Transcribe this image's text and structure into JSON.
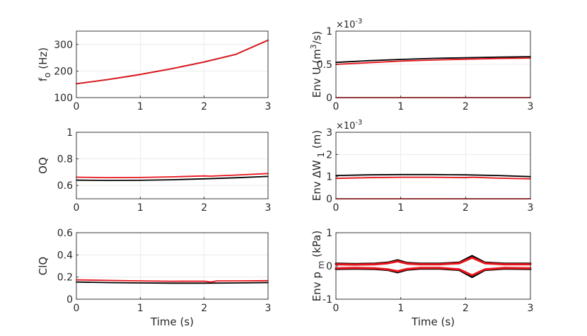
{
  "colors": {
    "black_series": "#000000",
    "red_series": "#e8141b",
    "axis": "#262626",
    "grid": "#e6e6e6"
  },
  "charts": [
    {
      "id": "fo",
      "type": "line",
      "ylabel": "f o (Hz)",
      "xlabel": "",
      "xlim": [
        0,
        3
      ],
      "ylim": [
        100,
        350
      ],
      "xticks": [
        "0",
        "1",
        "2",
        "3"
      ],
      "yticks": [
        {
          "v": 100,
          "label": "100"
        },
        {
          "v": 200,
          "label": "200"
        },
        {
          "v": 300,
          "label": "300"
        }
      ],
      "exponent": "",
      "series": [
        {
          "color": "black",
          "x": [
            0,
            0.5,
            1,
            1.5,
            2,
            2.5,
            3
          ],
          "y": [
            152,
            168,
            187,
            209,
            234,
            263,
            316
          ]
        },
        {
          "color": "red",
          "x": [
            0,
            0.5,
            1,
            1.5,
            2,
            2.5,
            3
          ],
          "y": [
            152,
            168,
            187,
            209,
            234,
            263,
            316
          ]
        }
      ]
    },
    {
      "id": "envU",
      "type": "line",
      "ylabel": "Env U (m3/s)",
      "xlabel": "",
      "xlim": [
        0,
        3
      ],
      "ylim": [
        0,
        1
      ],
      "xticks": [
        "0",
        "1",
        "2",
        "3"
      ],
      "yticks": [
        {
          "v": 0,
          "label": "0"
        },
        {
          "v": 0.5,
          "label": "0.5"
        },
        {
          "v": 1,
          "label": "1"
        }
      ],
      "exponent": "×10-3",
      "series": [
        {
          "color": "black",
          "x": [
            0,
            0.5,
            1,
            1.5,
            2,
            2.5,
            3
          ],
          "y": [
            0.53,
            0.555,
            0.575,
            0.59,
            0.6,
            0.608,
            0.615
          ]
        },
        {
          "color": "red",
          "x": [
            0,
            0.5,
            1,
            1.5,
            2,
            2.5,
            3
          ],
          "y": [
            0.5,
            0.525,
            0.55,
            0.565,
            0.578,
            0.588,
            0.595
          ]
        },
        {
          "color": "red",
          "x": [
            0,
            3
          ],
          "y": [
            0.0,
            0.0
          ]
        }
      ]
    },
    {
      "id": "oq",
      "type": "line",
      "ylabel": "OQ",
      "xlabel": "",
      "xlim": [
        0,
        3
      ],
      "ylim": [
        0.5,
        1
      ],
      "xticks": [
        "0",
        "1",
        "2",
        "3"
      ],
      "yticks": [
        {
          "v": 0.6,
          "label": "0.6"
        },
        {
          "v": 0.8,
          "label": "0.8"
        },
        {
          "v": 1,
          "label": "1"
        }
      ],
      "exponent": "",
      "series": [
        {
          "color": "black",
          "x": [
            0,
            0.5,
            1,
            1.5,
            2,
            2.5,
            3
          ],
          "y": [
            0.64,
            0.638,
            0.639,
            0.643,
            0.65,
            0.658,
            0.668
          ]
        },
        {
          "color": "red",
          "x": [
            0,
            0.5,
            1,
            1.5,
            2,
            2.1,
            2.5,
            3
          ],
          "y": [
            0.662,
            0.659,
            0.66,
            0.665,
            0.672,
            0.67,
            0.678,
            0.69
          ]
        }
      ]
    },
    {
      "id": "envW",
      "type": "line",
      "ylabel": "Env ΔW 1 (m)",
      "xlabel": "",
      "xlim": [
        0,
        3
      ],
      "ylim": [
        0,
        3
      ],
      "xticks": [
        "0",
        "1",
        "2",
        "3"
      ],
      "yticks": [
        {
          "v": 0,
          "label": "0"
        },
        {
          "v": 1,
          "label": "1"
        },
        {
          "v": 2,
          "label": "2"
        },
        {
          "v": 3,
          "label": "3"
        }
      ],
      "exponent": "×10-3",
      "series": [
        {
          "color": "black",
          "x": [
            0,
            0.5,
            1,
            1.5,
            2,
            2.5,
            3
          ],
          "y": [
            1.05,
            1.08,
            1.09,
            1.09,
            1.08,
            1.05,
            1.0
          ]
        },
        {
          "color": "red",
          "x": [
            0,
            0.5,
            1,
            1.5,
            2,
            2.1,
            2.5,
            3
          ],
          "y": [
            0.92,
            0.95,
            0.97,
            0.97,
            0.95,
            0.97,
            0.93,
            0.9
          ]
        },
        {
          "color": "red",
          "x": [
            0,
            3
          ],
          "y": [
            0.0,
            0.0
          ]
        }
      ]
    },
    {
      "id": "clq",
      "type": "line",
      "ylabel": "ClQ",
      "xlabel": "Time (s)",
      "xlim": [
        0,
        3
      ],
      "ylim": [
        0,
        0.6
      ],
      "xticks": [
        "0",
        "1",
        "2",
        "3"
      ],
      "yticks": [
        {
          "v": 0,
          "label": "0"
        },
        {
          "v": 0.2,
          "label": "0.2"
        },
        {
          "v": 0.4,
          "label": "0.4"
        },
        {
          "v": 0.6,
          "label": "0.6"
        }
      ],
      "exponent": "",
      "series": [
        {
          "color": "black",
          "x": [
            0,
            0.5,
            1,
            1.5,
            2,
            2.5,
            3
          ],
          "y": [
            0.155,
            0.15,
            0.147,
            0.145,
            0.145,
            0.147,
            0.15
          ]
        },
        {
          "color": "red",
          "x": [
            0,
            0.5,
            1,
            1.5,
            2,
            2.1,
            2.2,
            2.5,
            3
          ],
          "y": [
            0.175,
            0.17,
            0.165,
            0.162,
            0.163,
            0.155,
            0.165,
            0.165,
            0.167
          ]
        }
      ]
    },
    {
      "id": "envPm",
      "type": "line",
      "ylabel": "Env p m (kPa)",
      "xlabel": "Time (s)",
      "xlim": [
        0,
        3
      ],
      "ylim": [
        -1,
        1
      ],
      "xticks": [
        "0",
        "1",
        "2",
        "3"
      ],
      "yticks": [
        {
          "v": -1,
          "label": "-1"
        },
        {
          "v": 0,
          "label": "0"
        },
        {
          "v": 1,
          "label": "1"
        }
      ],
      "exponent": "",
      "series": [
        {
          "color": "black",
          "x": [
            0,
            0.3,
            0.6,
            0.8,
            0.95,
            1.1,
            1.3,
            1.6,
            1.9,
            2.1,
            2.3,
            2.6,
            3
          ],
          "y": [
            0.07,
            0.06,
            0.07,
            0.1,
            0.17,
            0.09,
            0.07,
            0.07,
            0.1,
            0.3,
            0.1,
            0.07,
            0.07
          ]
        },
        {
          "color": "black",
          "x": [
            0,
            0.3,
            0.6,
            0.8,
            0.95,
            1.1,
            1.3,
            1.6,
            1.9,
            2.1,
            2.3,
            2.6,
            3
          ],
          "y": [
            -0.09,
            -0.08,
            -0.09,
            -0.12,
            -0.19,
            -0.11,
            -0.08,
            -0.08,
            -0.12,
            -0.33,
            -0.12,
            -0.08,
            -0.09
          ]
        },
        {
          "color": "red",
          "x": [
            0,
            0.3,
            0.6,
            0.8,
            0.95,
            1.1,
            1.3,
            1.6,
            1.9,
            2.1,
            2.3,
            2.6,
            3
          ],
          "y": [
            0.05,
            0.04,
            0.05,
            0.08,
            0.14,
            0.07,
            0.05,
            0.05,
            0.08,
            0.25,
            0.08,
            0.05,
            0.05
          ]
        },
        {
          "color": "red",
          "x": [
            0,
            0.3,
            0.6,
            0.8,
            0.95,
            1.1,
            1.3,
            1.6,
            1.9,
            2.1,
            2.3,
            2.6,
            3
          ],
          "y": [
            -0.07,
            -0.06,
            -0.07,
            -0.1,
            -0.16,
            -0.09,
            -0.06,
            -0.06,
            -0.1,
            -0.28,
            -0.1,
            -0.06,
            -0.07
          ]
        }
      ]
    }
  ]
}
